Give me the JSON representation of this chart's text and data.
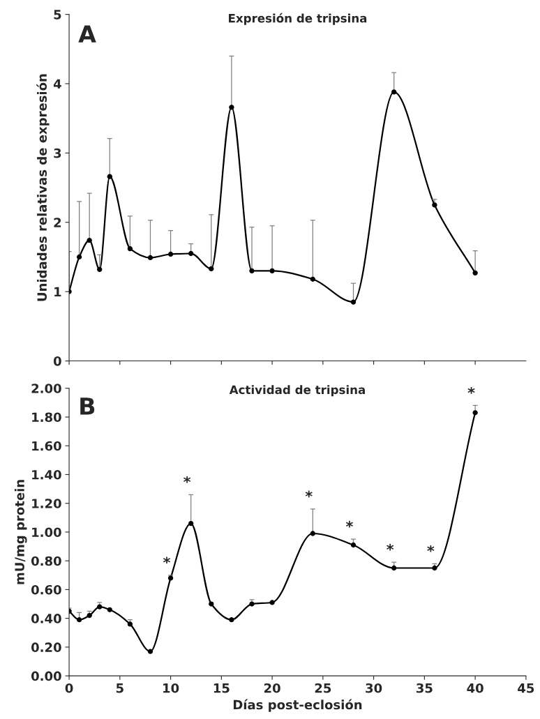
{
  "chart_data": [
    {
      "type": "line",
      "title": "Expresión de tripsina",
      "ylabel": "Unidades relativas de expresión",
      "annotations": [
        "A"
      ],
      "x": [
        0,
        1,
        2,
        3,
        4,
        6,
        8,
        10,
        12,
        14,
        16,
        18,
        20,
        24,
        28,
        32,
        36,
        40
      ],
      "series": [
        {
          "color": "#000000",
          "values": [
            1.0,
            1.5,
            1.74,
            1.32,
            2.66,
            1.62,
            1.49,
            1.54,
            1.55,
            1.33,
            3.66,
            1.3,
            1.3,
            1.18,
            0.85,
            3.88,
            2.25,
            1.27
          ],
          "errors": [
            [
              1.0,
              1.58
            ],
            [
              1.5,
              2.3
            ],
            [
              1.74,
              2.42
            ],
            [
              1.32,
              1.53
            ],
            [
              2.66,
              3.21
            ],
            [
              1.62,
              2.09
            ],
            [
              1.49,
              2.03
            ],
            [
              1.54,
              1.88
            ],
            [
              1.55,
              1.69
            ],
            [
              1.33,
              2.11
            ],
            [
              3.66,
              4.4
            ],
            [
              1.3,
              1.93
            ],
            [
              1.3,
              1.95
            ],
            [
              1.18,
              2.03
            ],
            [
              0.85,
              1.12
            ],
            [
              3.88,
              4.16
            ],
            [
              2.25,
              2.33
            ],
            [
              1.27,
              1.59
            ]
          ]
        }
      ],
      "xlim": [
        0,
        45
      ],
      "xticks": [
        {
          "value": 0,
          "label": null
        },
        {
          "value": 5,
          "label": null
        },
        {
          "value": 10,
          "label": null
        },
        {
          "value": 15,
          "label": null
        },
        {
          "value": 20,
          "label": null
        },
        {
          "value": 25,
          "label": null
        },
        {
          "value": 30,
          "label": null
        },
        {
          "value": 35,
          "label": null
        },
        {
          "value": 40,
          "label": null
        }
      ],
      "ylim": [
        0,
        5
      ],
      "yticks": [
        0,
        1,
        2,
        3,
        4,
        5
      ],
      "tick_labels": "y",
      "marker": "circle",
      "line_style": "solid",
      "grid": false
    },
    {
      "type": "line",
      "title": "Actividad de tripsina",
      "xlabel": "Días post-eclosión",
      "ylabel": "mU/mg protein",
      "annotations": [
        "B",
        {
          "text": "*",
          "x": 10,
          "y": 0.7
        },
        {
          "text": "*",
          "x": 12,
          "y": 1.26
        },
        {
          "text": "*",
          "x": 24,
          "y": 1.16
        },
        {
          "text": "*",
          "x": 28,
          "y": 0.95
        },
        {
          "text": "*",
          "x": 32,
          "y": 0.79
        },
        {
          "text": "*",
          "x": 36,
          "y": 0.78
        },
        {
          "text": "*",
          "x": 40,
          "y": 1.88
        }
      ],
      "x": [
        0,
        1,
        2,
        3,
        4,
        6,
        8,
        10,
        12,
        14,
        16,
        18,
        20,
        24,
        28,
        32,
        36,
        40
      ],
      "series": [
        {
          "color": "#000000",
          "values": [
            0.45,
            0.39,
            0.42,
            0.48,
            0.46,
            0.36,
            0.17,
            0.68,
            1.06,
            0.5,
            0.39,
            0.5,
            0.51,
            0.99,
            0.91,
            0.75,
            0.75,
            1.83
          ],
          "errors": [
            [
              0.45,
              0.47
            ],
            [
              0.39,
              0.44
            ],
            [
              0.42,
              0.45
            ],
            [
              0.48,
              0.51
            ],
            null,
            [
              0.36,
              0.39
            ],
            null,
            [
              0.68,
              0.7
            ],
            [
              1.06,
              1.26
            ],
            [
              0.5,
              0.51
            ],
            [
              0.39,
              0.4
            ],
            [
              0.5,
              0.53
            ],
            null,
            [
              0.99,
              1.16
            ],
            [
              0.91,
              0.95
            ],
            [
              0.75,
              0.79
            ],
            [
              0.75,
              0.78
            ],
            [
              1.83,
              1.88
            ]
          ]
        }
      ],
      "xlim": [
        0,
        45
      ],
      "xticks": [
        0,
        5,
        10,
        15,
        20,
        25,
        30,
        35,
        40,
        45
      ],
      "ylim": [
        0,
        2
      ],
      "yticks": [
        {
          "value": 0,
          "label": "0.00"
        },
        {
          "value": 0.2,
          "label": "0.20"
        },
        {
          "value": 0.4,
          "label": "0.40"
        },
        {
          "value": 0.6,
          "label": "0.60"
        },
        {
          "value": 0.8,
          "label": "0.80"
        },
        {
          "value": 1.0,
          "label": "1.00"
        },
        {
          "value": 1.2,
          "label": "1.20"
        },
        {
          "value": 1.4,
          "label": "1.40"
        },
        {
          "value": 1.6,
          "label": "1.60"
        },
        {
          "value": 1.8,
          "label": "1.80"
        },
        {
          "value": 2.0,
          "label": "2.00"
        }
      ],
      "marker": "circle",
      "line_style": "solid",
      "grid": false
    }
  ]
}
